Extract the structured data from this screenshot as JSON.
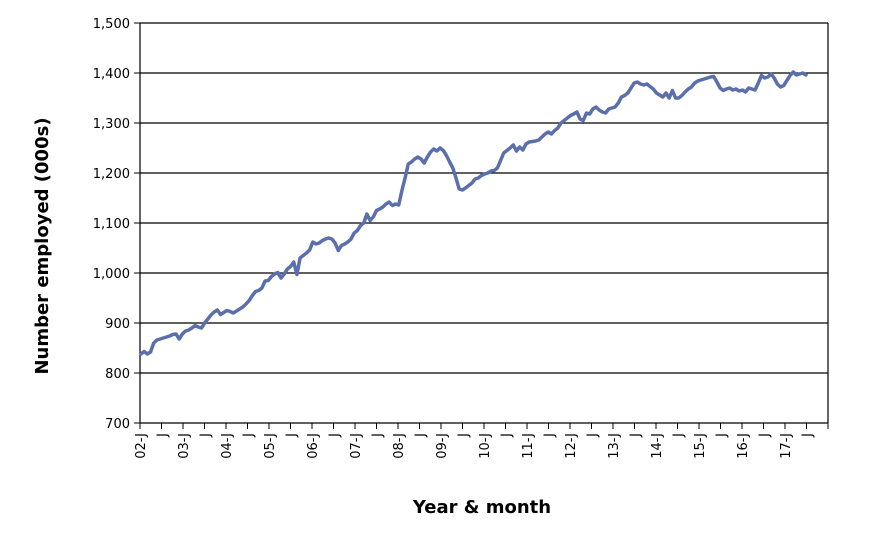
{
  "chart_data": {
    "type": "line",
    "title": "",
    "xlabel": "Year & month",
    "ylabel": "Number employed (000s)",
    "ylim": [
      700,
      1500
    ],
    "yticks": [
      700,
      800,
      900,
      1000,
      1100,
      1200,
      1300,
      1400,
      1500
    ],
    "ytick_labels": [
      "700",
      "800",
      "900",
      "1,000",
      "1,100",
      "1,200",
      "1,300",
      "1,400",
      "1,500"
    ],
    "x_tick_labels": [
      "02-J",
      "J",
      "03-J",
      "J",
      "04-J",
      "J",
      "05-J",
      "J",
      "06-J",
      "J",
      "07-J",
      "J",
      "08-J",
      "J",
      "09-J",
      "J",
      "10-J",
      "J",
      "11-J",
      "J",
      "12-J",
      "J",
      "13-J",
      "J",
      "14-J",
      "J",
      "15-J",
      "J",
      "16-J",
      "J",
      "17-J",
      "J"
    ],
    "grid": "horizontal",
    "legend": "none",
    "series": [
      {
        "color": "#5b6fad",
        "values": [
          838,
          843,
          838,
          842,
          860,
          866,
          868,
          870,
          872,
          874,
          877,
          878,
          868,
          878,
          884,
          886,
          890,
          895,
          892,
          890,
          900,
          908,
          916,
          922,
          926,
          917,
          921,
          925,
          923,
          920,
          924,
          928,
          932,
          938,
          945,
          955,
          963,
          965,
          970,
          984,
          985,
          993,
          998,
          1001,
          990,
          998,
          1008,
          1013,
          1022,
          997,
          1030,
          1035,
          1040,
          1046,
          1062,
          1058,
          1060,
          1065,
          1068,
          1070,
          1068,
          1060,
          1045,
          1055,
          1058,
          1062,
          1068,
          1080,
          1085,
          1095,
          1100,
          1118,
          1105,
          1112,
          1125,
          1128,
          1132,
          1138,
          1142,
          1135,
          1138,
          1136,
          1165,
          1190,
          1218,
          1222,
          1228,
          1232,
          1228,
          1220,
          1232,
          1242,
          1248,
          1244,
          1250,
          1245,
          1235,
          1222,
          1210,
          1190,
          1168,
          1166,
          1170,
          1175,
          1180,
          1188,
          1190,
          1195,
          1198,
          1200,
          1204,
          1205,
          1210,
          1225,
          1240,
          1245,
          1250,
          1256,
          1244,
          1252,
          1246,
          1258,
          1262,
          1263,
          1264,
          1266,
          1272,
          1278,
          1282,
          1278,
          1285,
          1290,
          1300,
          1305,
          1310,
          1315,
          1318,
          1322,
          1308,
          1305,
          1320,
          1318,
          1328,
          1332,
          1326,
          1322,
          1320,
          1328,
          1330,
          1332,
          1340,
          1352,
          1355,
          1360,
          1370,
          1380,
          1382,
          1378,
          1376,
          1378,
          1373,
          1368,
          1360,
          1356,
          1352,
          1360,
          1350,
          1365,
          1350,
          1350,
          1355,
          1362,
          1368,
          1372,
          1380,
          1384,
          1386,
          1388,
          1390,
          1392,
          1393,
          1382,
          1370,
          1365,
          1368,
          1370,
          1366,
          1368,
          1364,
          1366,
          1362,
          1370,
          1368,
          1366,
          1380,
          1395,
          1390,
          1392,
          1398,
          1390,
          1378,
          1372,
          1375,
          1385,
          1395,
          1402,
          1396,
          1398,
          1400,
          1396
        ]
      }
    ]
  }
}
